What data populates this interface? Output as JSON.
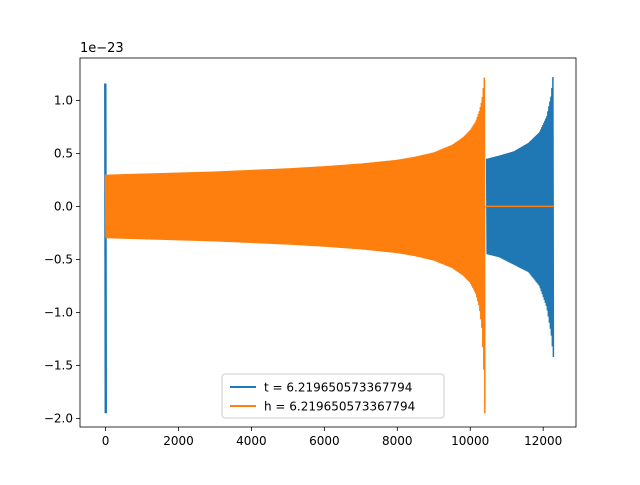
{
  "chart_data": {
    "type": "line",
    "title": "",
    "xlabel": "",
    "ylabel": "",
    "y_offset_label": "1e−23",
    "xlim": [
      -700,
      12900
    ],
    "ylim": [
      -2.08,
      1.4
    ],
    "x_ticks": [
      0,
      2000,
      4000,
      6000,
      8000,
      10000,
      12000
    ],
    "y_ticks": [
      -2.0,
      -1.5,
      -1.0,
      -0.5,
      0.0,
      0.5,
      1.0
    ],
    "grid": false,
    "legend_position": "lower center",
    "series": [
      {
        "name": "t = 6.219650573367794",
        "color": "#1f77b4",
        "style": "dense oscillation (chirp)",
        "segments": [
          {
            "x": [
              -20,
              20
            ],
            "envelope_upper": [
              1.16,
              1.16
            ],
            "envelope_lower": [
              -1.95,
              -1.95
            ]
          },
          {
            "x": [
              10450,
              10800,
              11200,
              11600,
              11900,
              12100,
              12220,
              12280
            ],
            "envelope_upper": [
              0.45,
              0.48,
              0.52,
              0.6,
              0.7,
              0.85,
              1.05,
              1.27
            ],
            "envelope_lower": [
              -0.45,
              -0.48,
              -0.55,
              -0.62,
              -0.75,
              -0.95,
              -1.2,
              -1.42
            ]
          }
        ]
      },
      {
        "name": "h = 6.219650573367794",
        "color": "#ff7f0e",
        "style": "dense oscillation (chirp) then flat",
        "segments": [
          {
            "x": [
              0,
              1000,
              2000,
              3000,
              4000,
              5000,
              6000,
              7000,
              8000,
              8500,
              9000,
              9500,
              9800,
              10000,
              10150,
              10250,
              10320,
              10370,
              10400
            ],
            "envelope_upper": [
              0.3,
              0.31,
              0.32,
              0.33,
              0.345,
              0.36,
              0.38,
              0.405,
              0.44,
              0.47,
              0.51,
              0.58,
              0.65,
              0.72,
              0.8,
              0.9,
              1.0,
              1.15,
              1.27
            ],
            "envelope_lower": [
              -0.3,
              -0.31,
              -0.32,
              -0.33,
              -0.345,
              -0.36,
              -0.38,
              -0.405,
              -0.44,
              -0.47,
              -0.51,
              -0.58,
              -0.65,
              -0.72,
              -0.82,
              -0.95,
              -1.15,
              -1.5,
              -1.95
            ]
          },
          {
            "x": [
              10430,
              12280
            ],
            "values": [
              0.0,
              0.0
            ]
          }
        ]
      }
    ]
  }
}
